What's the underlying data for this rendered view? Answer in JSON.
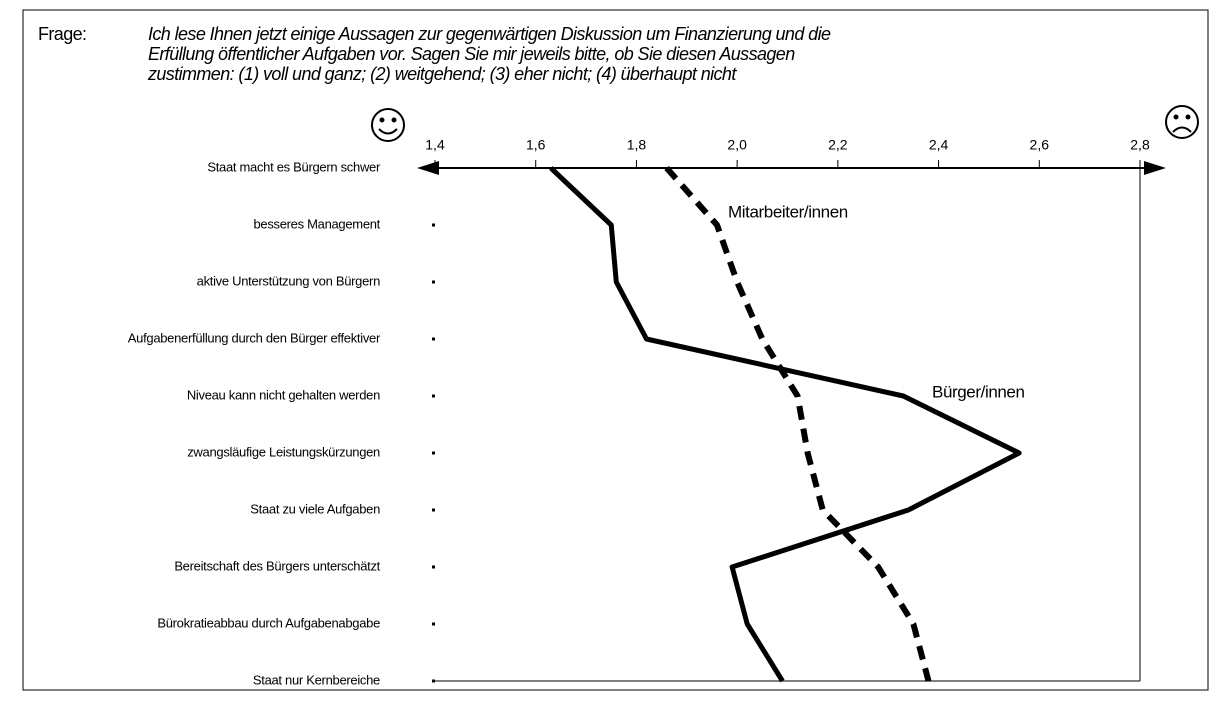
{
  "chart_data": {
    "type": "line",
    "question_label": "Frage:",
    "question": [
      "Ich lese Ihnen jetzt einige Aussagen zur gegenwärtigen Diskussion um Finanzierung und die",
      "Erfüllung öffentlicher Aufgaben vor. Sagen Sie mir jeweils bitte, ob Sie diesen Aussagen",
      "zustimmen: (1) voll und ganz; (2) weitgehend; (3) eher nicht; (4) überhaupt nicht"
    ],
    "categories": [
      "Staat macht es Bürgern schwer",
      "besseres Management",
      "aktive Unterstützung von Bürgern",
      "Aufgabenerfüllung durch den Bürger effektiver",
      "Niveau kann nicht gehalten werden",
      "zwangsläufige Leistungskürzungen",
      "Staat zu viele Aufgaben",
      "Bereitschaft des Bürgers unterschätzt",
      "Bürokratieabbau durch Aufgabenabgabe",
      "Staat nur Kernbereiche"
    ],
    "series": [
      {
        "name": "Bürger/innen",
        "color": "#000000",
        "style": "solid",
        "values": [
          1.63,
          1.75,
          1.76,
          1.82,
          2.33,
          2.56,
          2.34,
          1.99,
          2.02,
          2.09
        ]
      },
      {
        "name": "Mitarbeiter/innen",
        "color": "#000000",
        "style": "dashed",
        "values": [
          1.86,
          1.96,
          2.0,
          2.05,
          2.12,
          2.14,
          2.17,
          2.28,
          2.35,
          2.38
        ]
      }
    ],
    "xlim": [
      1.4,
      2.8
    ],
    "xticks": [
      {
        "value": 1.4,
        "label": "1,4"
      },
      {
        "value": 1.6,
        "label": "1,6"
      },
      {
        "value": 1.8,
        "label": "1,8"
      },
      {
        "value": 2.0,
        "label": "2,0"
      },
      {
        "value": 2.2,
        "label": "2,2"
      },
      {
        "value": 2.4,
        "label": "2,4"
      },
      {
        "value": 2.6,
        "label": "2,6"
      },
      {
        "value": 2.8,
        "label": "2,8"
      }
    ]
  }
}
